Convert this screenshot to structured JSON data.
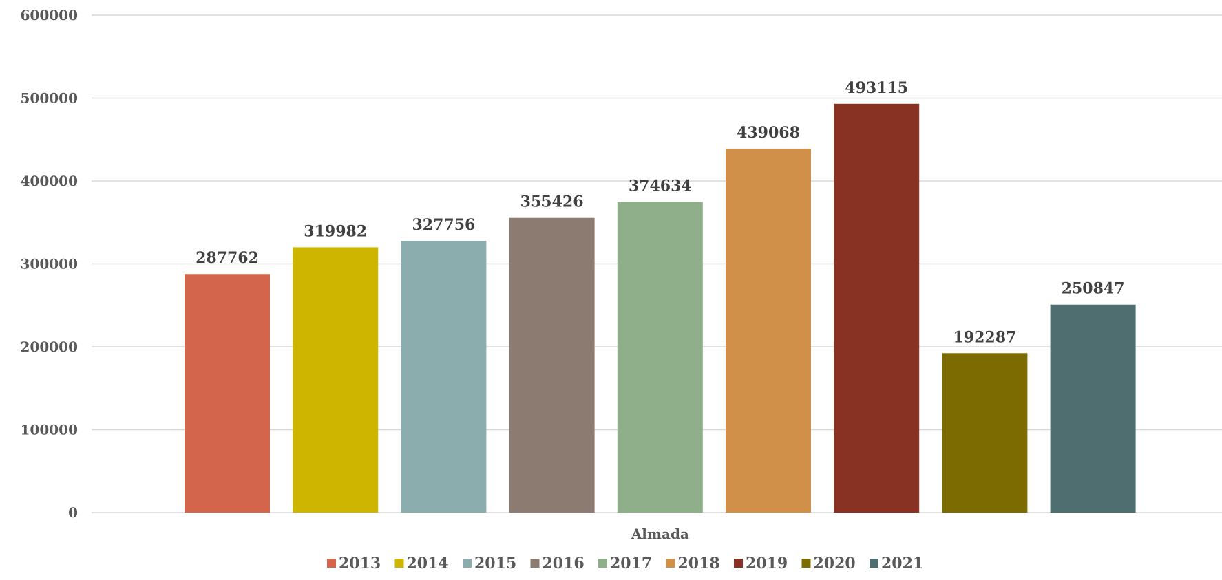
{
  "chart_data": {
    "type": "bar",
    "categories": [
      "Almada"
    ],
    "series": [
      {
        "name": "2013",
        "values": [
          287762
        ],
        "color": "#d2654b"
      },
      {
        "name": "2014",
        "values": [
          319982
        ],
        "color": "#ceb500"
      },
      {
        "name": "2015",
        "values": [
          327756
        ],
        "color": "#8badae"
      },
      {
        "name": "2016",
        "values": [
          355426
        ],
        "color": "#8c7b71"
      },
      {
        "name": "2017",
        "values": [
          374634
        ],
        "color": "#8faf8a"
      },
      {
        "name": "2018",
        "values": [
          439068
        ],
        "color": "#d1904a"
      },
      {
        "name": "2019",
        "values": [
          493115
        ],
        "color": "#883224"
      },
      {
        "name": "2020",
        "values": [
          192287
        ],
        "color": "#7b6b00"
      },
      {
        "name": "2021",
        "values": [
          250847
        ],
        "color": "#4f6e6f"
      }
    ],
    "yticks": [
      "0",
      "100000",
      "200000",
      "300000",
      "400000",
      "500000",
      "600000"
    ],
    "ylim": [
      0,
      600000
    ],
    "grid": true,
    "data_labels": true,
    "legend": "bottom-center"
  }
}
